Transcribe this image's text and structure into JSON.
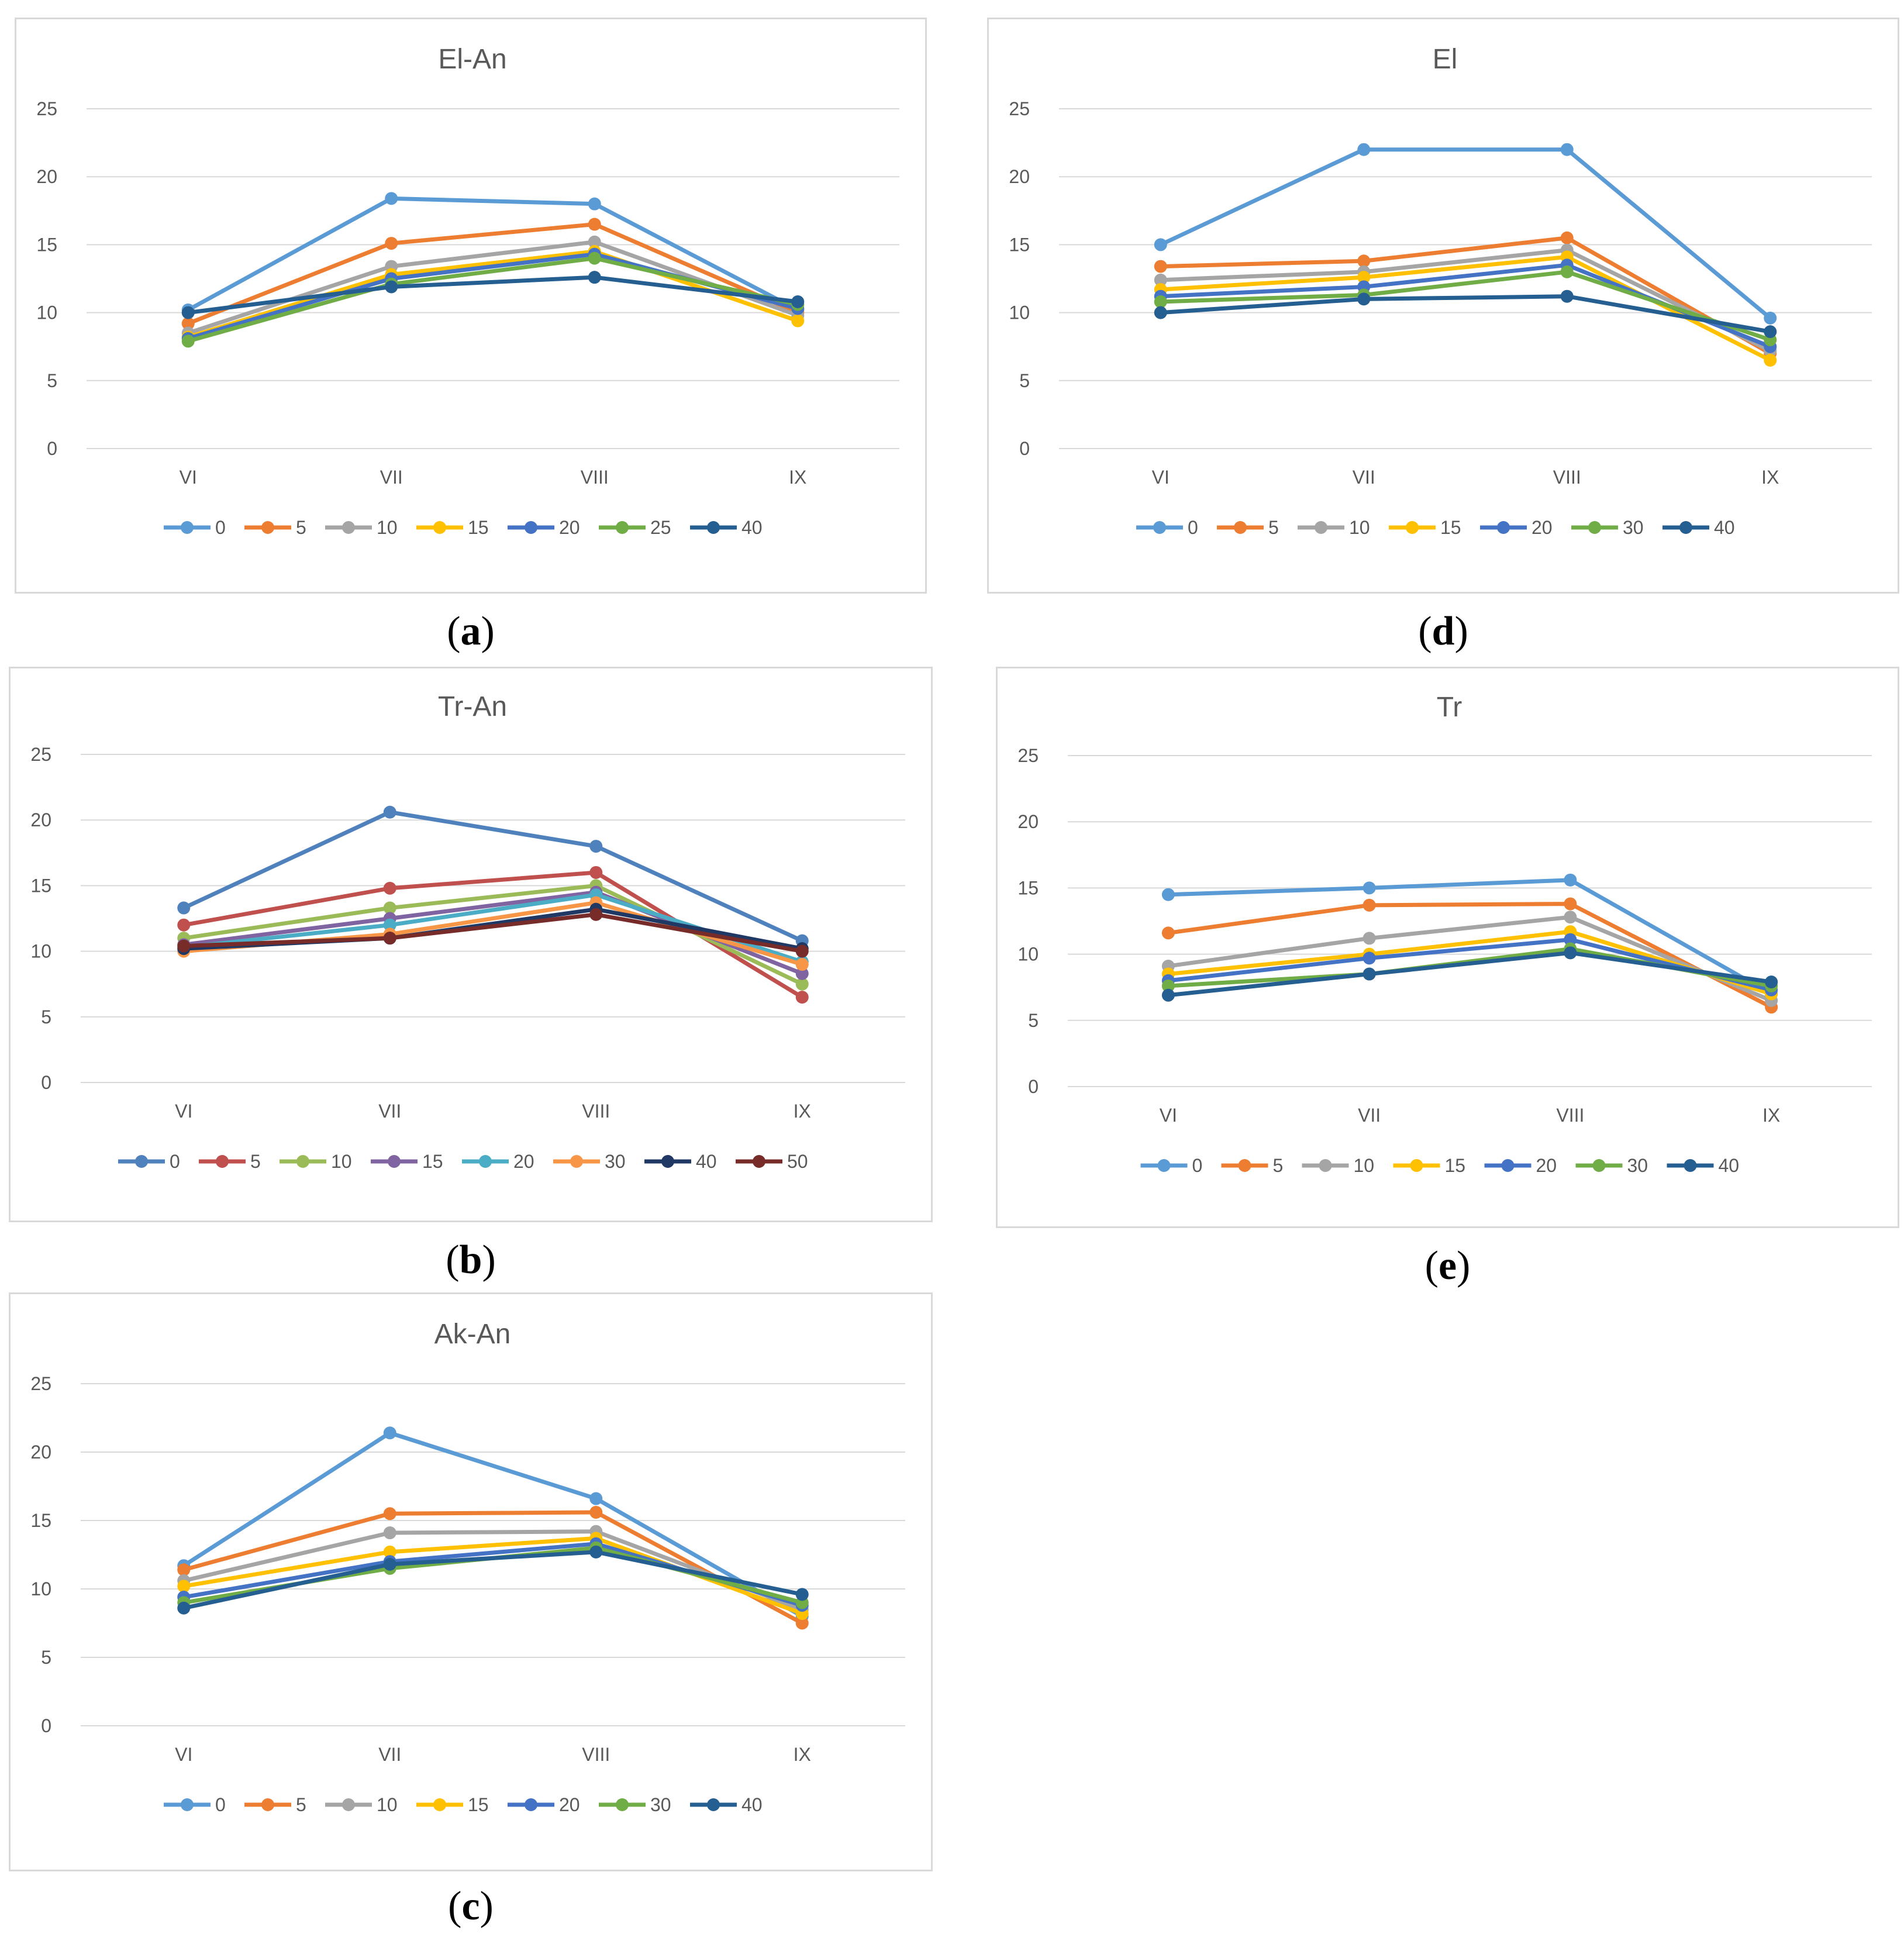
{
  "chart_data": [
    {
      "id": "a",
      "type": "line",
      "title": "El-An",
      "caption": "a",
      "categories": [
        "VI",
        "VII",
        "VIII",
        "IX"
      ],
      "ylim": [
        0,
        25
      ],
      "yticks": [
        "0",
        "5",
        "10",
        "15",
        "20",
        "25"
      ],
      "grid": true,
      "legend_position": "bottom",
      "series": [
        {
          "name": "0",
          "color": "#5b9bd5",
          "values": [
            10.2,
            18.4,
            18.0,
            10.2
          ]
        },
        {
          "name": "5",
          "color": "#ed7d31",
          "values": [
            9.2,
            15.1,
            16.5,
            10.0
          ]
        },
        {
          "name": "10",
          "color": "#a5a5a5",
          "values": [
            8.5,
            13.4,
            15.2,
            9.8
          ]
        },
        {
          "name": "15",
          "color": "#ffc000",
          "values": [
            8.2,
            12.8,
            14.5,
            9.4
          ]
        },
        {
          "name": "20",
          "color": "#4472c4",
          "values": [
            8.1,
            12.5,
            14.3,
            10.3
          ]
        },
        {
          "name": "25",
          "color": "#70ad47",
          "values": [
            7.9,
            12.1,
            14.0,
            10.6
          ]
        },
        {
          "name": "40",
          "color": "#255e91",
          "values": [
            10.0,
            11.9,
            12.6,
            10.8
          ]
        }
      ]
    },
    {
      "id": "b",
      "type": "line",
      "title": "Tr-An",
      "caption": "b",
      "categories": [
        "VI",
        "VII",
        "VIII",
        "IX"
      ],
      "ylim": [
        0,
        25
      ],
      "yticks": [
        "0",
        "5",
        "10",
        "15",
        "20",
        "25"
      ],
      "grid": true,
      "legend_position": "bottom",
      "series": [
        {
          "name": "0",
          "color": "#4f81bd",
          "values": [
            13.3,
            20.6,
            18.0,
            10.8
          ]
        },
        {
          "name": "5",
          "color": "#c0504d",
          "values": [
            12.0,
            14.8,
            16.0,
            6.5
          ]
        },
        {
          "name": "10",
          "color": "#9bbb59",
          "values": [
            11.0,
            13.3,
            15.0,
            7.5
          ]
        },
        {
          "name": "15",
          "color": "#8064a2",
          "values": [
            10.5,
            12.5,
            14.5,
            8.3
          ]
        },
        {
          "name": "20",
          "color": "#4bacc6",
          "values": [
            10.3,
            12.0,
            14.3,
            9.2
          ]
        },
        {
          "name": "30",
          "color": "#f79646",
          "values": [
            10.0,
            11.3,
            13.7,
            9.0
          ]
        },
        {
          "name": "40",
          "color": "#1f3864",
          "values": [
            10.2,
            11.0,
            13.2,
            10.2
          ]
        },
        {
          "name": "50",
          "color": "#772c2a",
          "values": [
            10.4,
            11.0,
            12.8,
            10.0
          ]
        }
      ]
    },
    {
      "id": "c",
      "type": "line",
      "title": "Ak-An",
      "caption": "c",
      "categories": [
        "VI",
        "VII",
        "VIII",
        "IX"
      ],
      "ylim": [
        0,
        25
      ],
      "yticks": [
        "0",
        "5",
        "10",
        "15",
        "20",
        "25"
      ],
      "grid": true,
      "legend_position": "bottom",
      "series": [
        {
          "name": "0",
          "color": "#5b9bd5",
          "values": [
            11.7,
            21.4,
            16.6,
            8.0
          ]
        },
        {
          "name": "5",
          "color": "#ed7d31",
          "values": [
            11.4,
            15.5,
            15.6,
            7.5
          ]
        },
        {
          "name": "10",
          "color": "#a5a5a5",
          "values": [
            10.6,
            14.1,
            14.2,
            8.5
          ]
        },
        {
          "name": "15",
          "color": "#ffc000",
          "values": [
            10.2,
            12.7,
            13.7,
            8.2
          ]
        },
        {
          "name": "20",
          "color": "#4472c4",
          "values": [
            9.4,
            12.0,
            13.3,
            8.8
          ]
        },
        {
          "name": "30",
          "color": "#70ad47",
          "values": [
            9.0,
            11.5,
            13.0,
            9.0
          ]
        },
        {
          "name": "40",
          "color": "#255e91",
          "values": [
            8.6,
            11.8,
            12.7,
            9.6
          ]
        }
      ]
    },
    {
      "id": "d",
      "type": "line",
      "title": "El",
      "caption": "d",
      "categories": [
        "VI",
        "VII",
        "VIII",
        "IX"
      ],
      "ylim": [
        0,
        25
      ],
      "yticks": [
        "0",
        "5",
        "10",
        "15",
        "20",
        "25"
      ],
      "grid": true,
      "legend_position": "bottom",
      "series": [
        {
          "name": "0",
          "color": "#5b9bd5",
          "values": [
            15.0,
            22.0,
            22.0,
            9.6
          ]
        },
        {
          "name": "5",
          "color": "#ed7d31",
          "values": [
            13.4,
            13.8,
            15.5,
            7.0
          ]
        },
        {
          "name": "10",
          "color": "#a5a5a5",
          "values": [
            12.4,
            13.0,
            14.6,
            7.2
          ]
        },
        {
          "name": "15",
          "color": "#ffc000",
          "values": [
            11.7,
            12.6,
            14.1,
            6.5
          ]
        },
        {
          "name": "20",
          "color": "#4472c4",
          "values": [
            11.2,
            11.9,
            13.5,
            7.5
          ]
        },
        {
          "name": "30",
          "color": "#70ad47",
          "values": [
            10.8,
            11.3,
            13.0,
            8.0
          ]
        },
        {
          "name": "40",
          "color": "#255e91",
          "values": [
            10.0,
            11.0,
            11.2,
            8.6
          ]
        }
      ]
    },
    {
      "id": "e",
      "type": "line",
      "title": "Tr",
      "caption": "e",
      "categories": [
        "VI",
        "VII",
        "VIII",
        "IX"
      ],
      "ylim": [
        0,
        25
      ],
      "yticks": [
        "0",
        "5",
        "10",
        "15",
        "20",
        "25"
      ],
      "grid": true,
      "legend_position": "bottom",
      "series": [
        {
          "name": "0",
          "color": "#5b9bd5",
          "values": [
            14.5,
            15.0,
            15.6,
            7.0
          ]
        },
        {
          "name": "5",
          "color": "#ed7d31",
          "values": [
            11.6,
            13.7,
            13.8,
            6.0
          ]
        },
        {
          "name": "10",
          "color": "#a5a5a5",
          "values": [
            9.1,
            11.2,
            12.8,
            6.5
          ]
        },
        {
          "name": "15",
          "color": "#ffc000",
          "values": [
            8.5,
            10.0,
            11.7,
            7.0
          ]
        },
        {
          "name": "20",
          "color": "#4472c4",
          "values": [
            8.0,
            9.7,
            11.1,
            7.3
          ]
        },
        {
          "name": "30",
          "color": "#70ad47",
          "values": [
            7.6,
            8.5,
            10.4,
            7.6
          ]
        },
        {
          "name": "40",
          "color": "#255e91",
          "values": [
            6.9,
            8.5,
            10.1,
            7.9
          ]
        }
      ]
    }
  ]
}
